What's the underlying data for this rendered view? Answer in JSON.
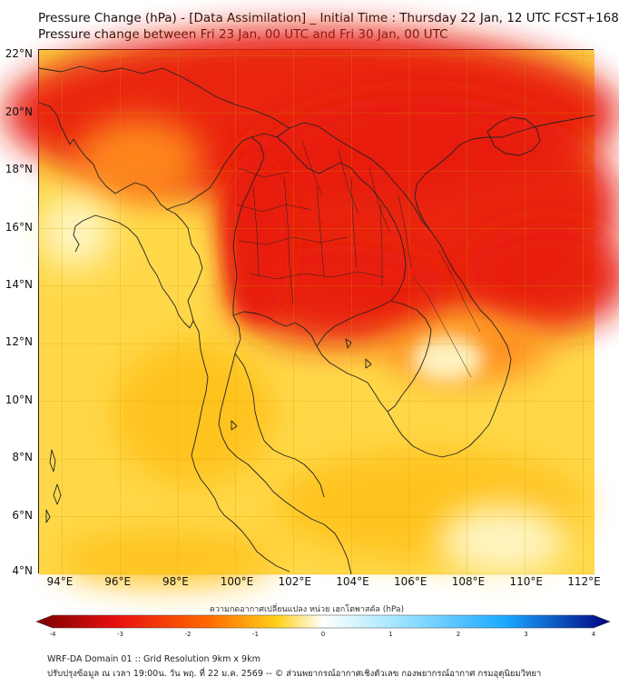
{
  "title": {
    "line1": "Pressure Change (hPa) - [Data Assimilation] _ Initial Time : Thursday 22 Jan, 12 UTC FCST+168",
    "line2": "Pressure change between Fri 23 Jan, 00 UTC and Fri 30 Jan, 00 UTC"
  },
  "axes": {
    "lat_labels": [
      "22°N",
      "20°N",
      "18°N",
      "16°N",
      "14°N",
      "12°N",
      "10°N",
      "8°N",
      "6°N",
      "4°N"
    ],
    "lon_labels": [
      "94°E",
      "96°E",
      "98°E",
      "100°E",
      "102°E",
      "104°E",
      "106°E",
      "108°E",
      "110°E",
      "112°E"
    ],
    "lat_values": [
      22,
      20,
      18,
      16,
      14,
      12,
      10,
      8,
      6,
      4
    ],
    "lon_values": [
      94,
      96,
      98,
      100,
      102,
      104,
      106,
      108,
      110,
      112
    ],
    "lat_range": [
      4,
      22.2
    ],
    "lon_range": [
      93.2,
      112.4
    ]
  },
  "colorbar": {
    "caption": "ความกดอากาศเปลี่ยนแปลง หน่วย เฮกโตพาสคัล (hPa)",
    "ticks": [
      "-4",
      "-3",
      "-2",
      "-1",
      "0",
      "1",
      "2",
      "3",
      "4"
    ],
    "range": [
      -4,
      4
    ],
    "colors": {
      "min": "#7a0000",
      "strong_negative": "#e81010",
      "negative": "#ff6a00",
      "weak_negative": "#ffd21a",
      "zero": "#ffffff",
      "weak_positive": "#a8e8ff",
      "positive": "#1aa8ff",
      "max": "#000080"
    }
  },
  "footer": {
    "line1": "WRF-DA Domain 01 :: Grid Resolution 9km x 9km",
    "line2": "ปรับปรุงข้อมูล ณ เวลา 19:00น. วัน พฤ. ที่ 22 ม.ค. 2569 -- © ส่วนพยากรณ์อากาศเชิงตัวเลข กองพยากรณ์อากาศ กรมอุตุนิยมวิทยา"
  },
  "map_colors": {
    "base": "#ffd84a",
    "red": "#e81a10",
    "orange": "#ff8a1a",
    "yellow": "#ffc21a",
    "pale": "#fff7c8",
    "coast": "#222222",
    "grid": "#c8a000"
  }
}
